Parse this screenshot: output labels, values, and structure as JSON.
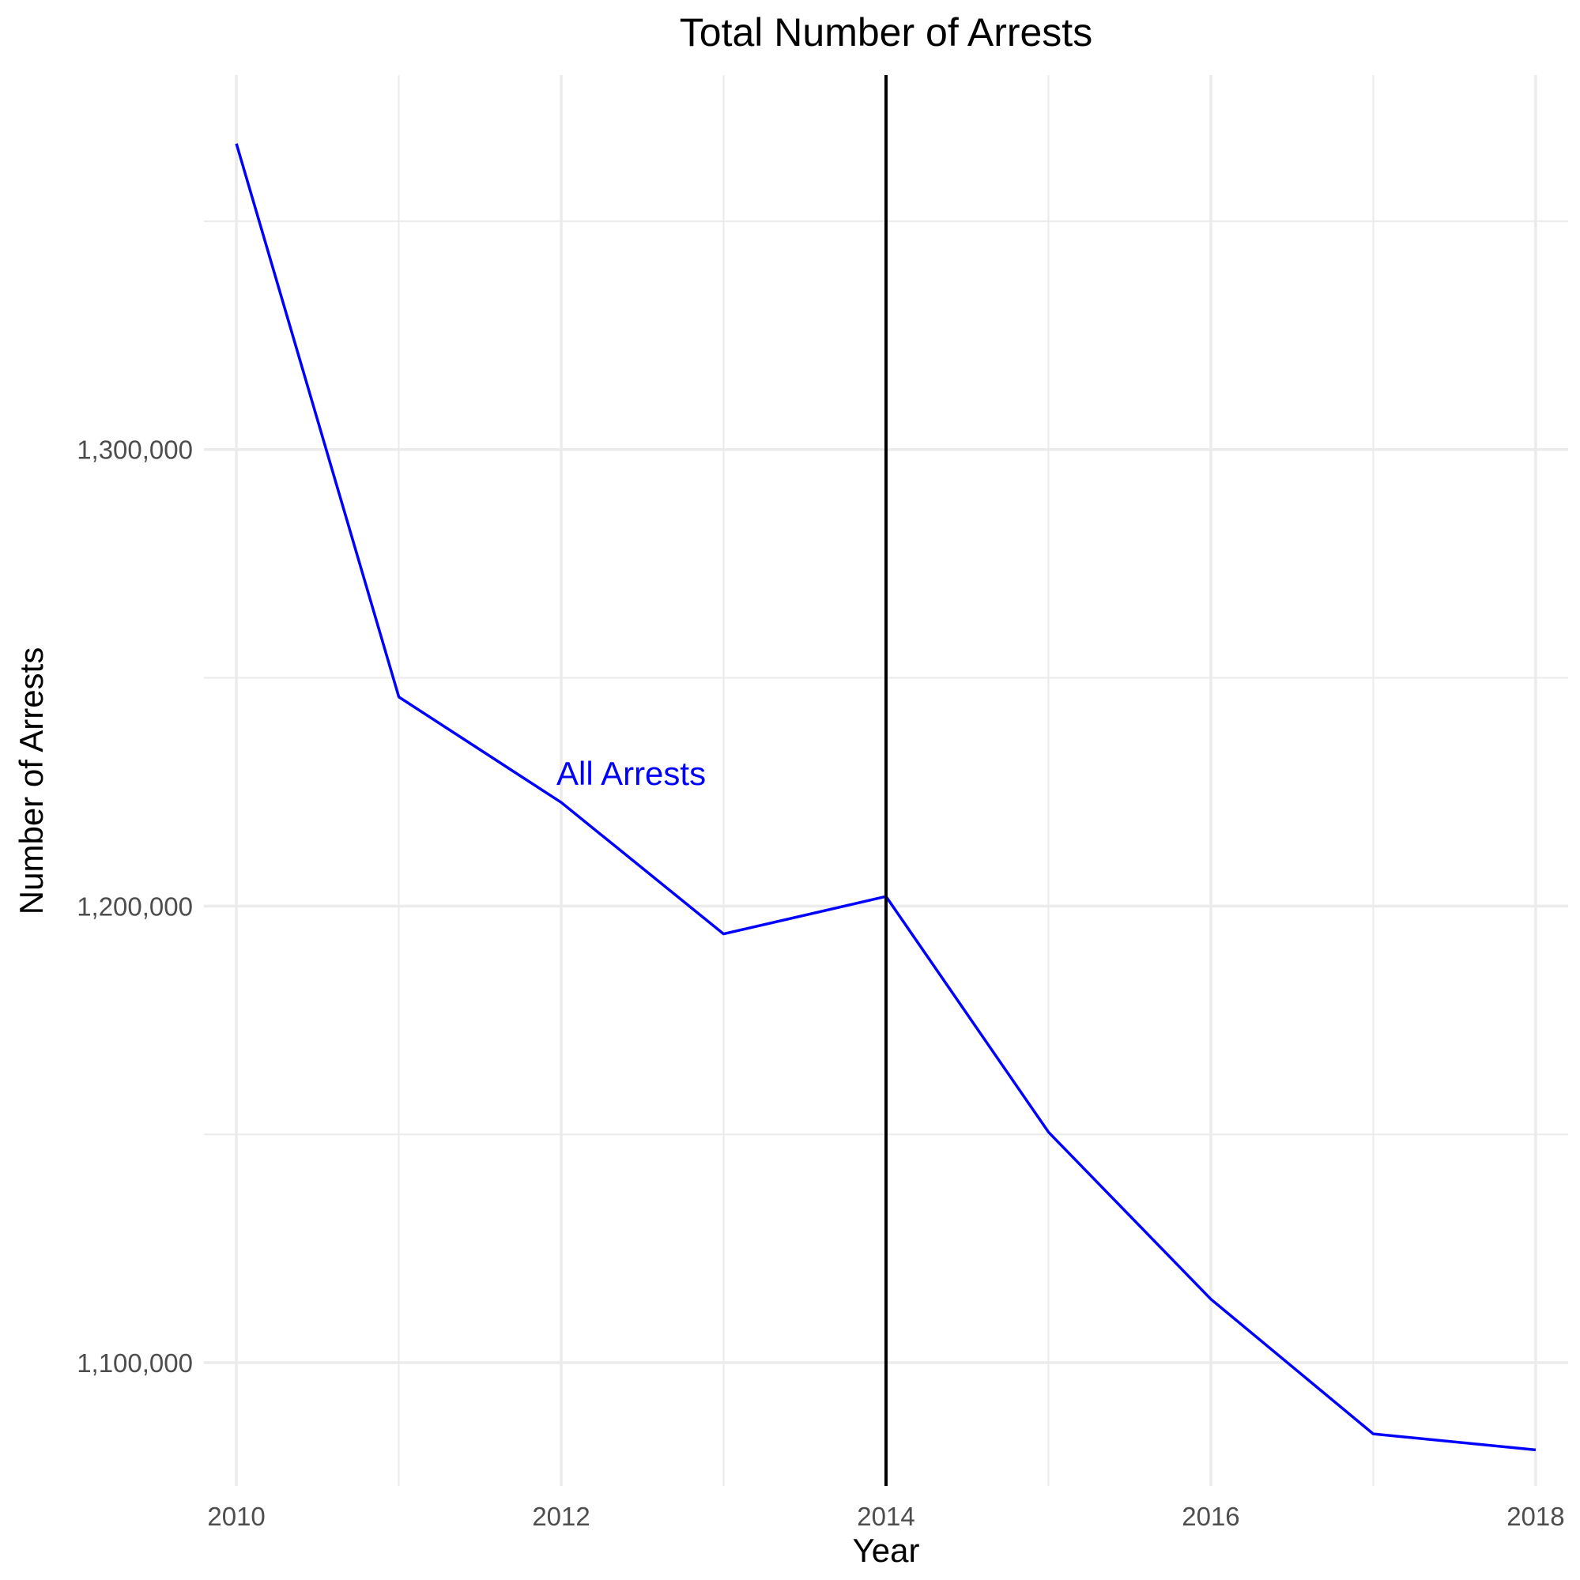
{
  "chart_data": {
    "type": "line",
    "title": "Total Number of Arrests",
    "xlabel": "Year",
    "ylabel": "Number of Arrests",
    "x": [
      2010,
      2011,
      2012,
      2013,
      2014,
      2015,
      2016,
      2017,
      2018
    ],
    "series": [
      {
        "values": [
          1367000,
          1245800,
          1222700,
          1193900,
          1202100,
          1150500,
          1113900,
          1084400,
          1080900
        ],
        "color": "#0000ff"
      }
    ],
    "annotations": [
      {
        "text": "All Arrests",
        "x": 2012,
        "y": 1229000,
        "color": "#0000ff"
      }
    ],
    "reference_lines": [
      {
        "orientation": "vertical",
        "x": 2014,
        "color": "#000000"
      }
    ],
    "x_ticks": [
      2010,
      2012,
      2014,
      2016,
      2018
    ],
    "x_tick_labels": [
      "2010",
      "2012",
      "2014",
      "2016",
      "2018"
    ],
    "y_ticks": [
      1100000,
      1200000,
      1300000
    ],
    "y_tick_labels": [
      "1,100,000",
      "1,200,000",
      "1,300,000"
    ],
    "xlim": [
      2009.8,
      2018.2
    ],
    "ylim": [
      1073000,
      1382000
    ],
    "grid": true,
    "legend": "none"
  }
}
